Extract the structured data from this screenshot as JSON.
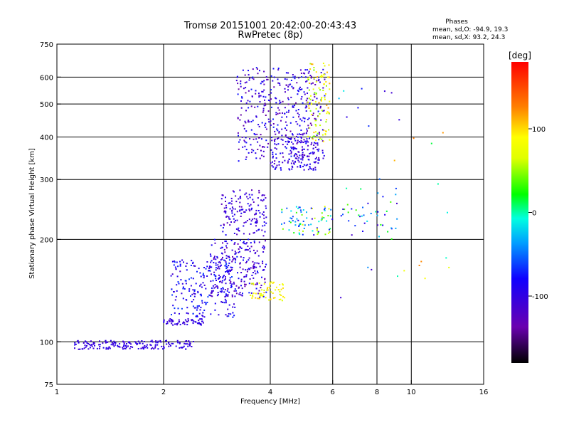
{
  "chart_data": {
    "type": "scatter",
    "title": "Tromsø 20151001 20:42:00-20:43:43",
    "subtitle": "RwPretec (8p)",
    "xlabel": "Frequency [MHz]",
    "ylabel": "Stationary phase Virtual Height [km]",
    "x_scale": "log",
    "y_scale": "log",
    "xlim": [
      1,
      16
    ],
    "ylim": [
      75,
      750
    ],
    "x_ticks": [
      1,
      2,
      4,
      6,
      8,
      10,
      16
    ],
    "x_tick_labels": [
      "1",
      "2",
      "4",
      "6",
      "8",
      "10",
      "16"
    ],
    "y_ticks": [
      75,
      100,
      200,
      300,
      400,
      500,
      600,
      750
    ],
    "y_tick_labels": [
      "75",
      "100",
      "200",
      "300",
      "400",
      "500",
      "600",
      "750"
    ],
    "grid": true,
    "phase_legend": {
      "title": "Phases",
      "line_o": "mean, sd,O: -94.9, 19.3",
      "line_x": "mean, sd,X:  93.2, 24.3"
    },
    "colorbar": {
      "label": "[deg]",
      "range": [
        -180,
        180
      ],
      "ticks": [
        100,
        0,
        -100
      ],
      "tick_labels": [
        "100",
        "0",
        "-100"
      ]
    },
    "clusters": [
      {
        "x": [
          1.12,
          2.45
        ],
        "y": [
          95,
          101
        ],
        "phase": [
          -110,
          -90
        ],
        "n": 180
      },
      {
        "x": [
          2.0,
          2.6
        ],
        "y": [
          112,
          117
        ],
        "phase": [
          -115,
          -90
        ],
        "n": 60
      },
      {
        "x": [
          2.1,
          3.2
        ],
        "y": [
          118,
          175
        ],
        "phase": [
          -115,
          -60
        ],
        "n": 220
      },
      {
        "x": [
          2.7,
          3.9
        ],
        "y": [
          135,
          200
        ],
        "phase": [
          -140,
          -70
        ],
        "n": 240
      },
      {
        "x": [
          3.5,
          4.4
        ],
        "y": [
          132,
          150
        ],
        "phase": [
          60,
          110
        ],
        "n": 60
      },
      {
        "x": [
          2.9,
          3.9
        ],
        "y": [
          205,
          280
        ],
        "phase": [
          -130,
          -80
        ],
        "n": 150
      },
      {
        "x": [
          3.2,
          5.7
        ],
        "y": [
          340,
          640
        ],
        "phase": [
          -140,
          -70
        ],
        "n": 420
      },
      {
        "x": [
          4.0,
          5.5
        ],
        "y": [
          320,
          400
        ],
        "phase": [
          -120,
          -80
        ],
        "n": 130
      },
      {
        "x": [
          5.1,
          5.9
        ],
        "y": [
          380,
          660
        ],
        "phase": [
          40,
          120
        ],
        "n": 100
      },
      {
        "x": [
          4.3,
          6.0
        ],
        "y": [
          205,
          250
        ],
        "phase": [
          -110,
          80
        ],
        "n": 80
      },
      {
        "x": [
          6.3,
          9.2
        ],
        "y": [
          200,
          285
        ],
        "phase": [
          -120,
          40
        ],
        "n": 40
      },
      {
        "x": [
          6.2,
          13.0
        ],
        "y": [
          130,
          630
        ],
        "phase": [
          -120,
          140
        ],
        "n": 30
      }
    ]
  }
}
